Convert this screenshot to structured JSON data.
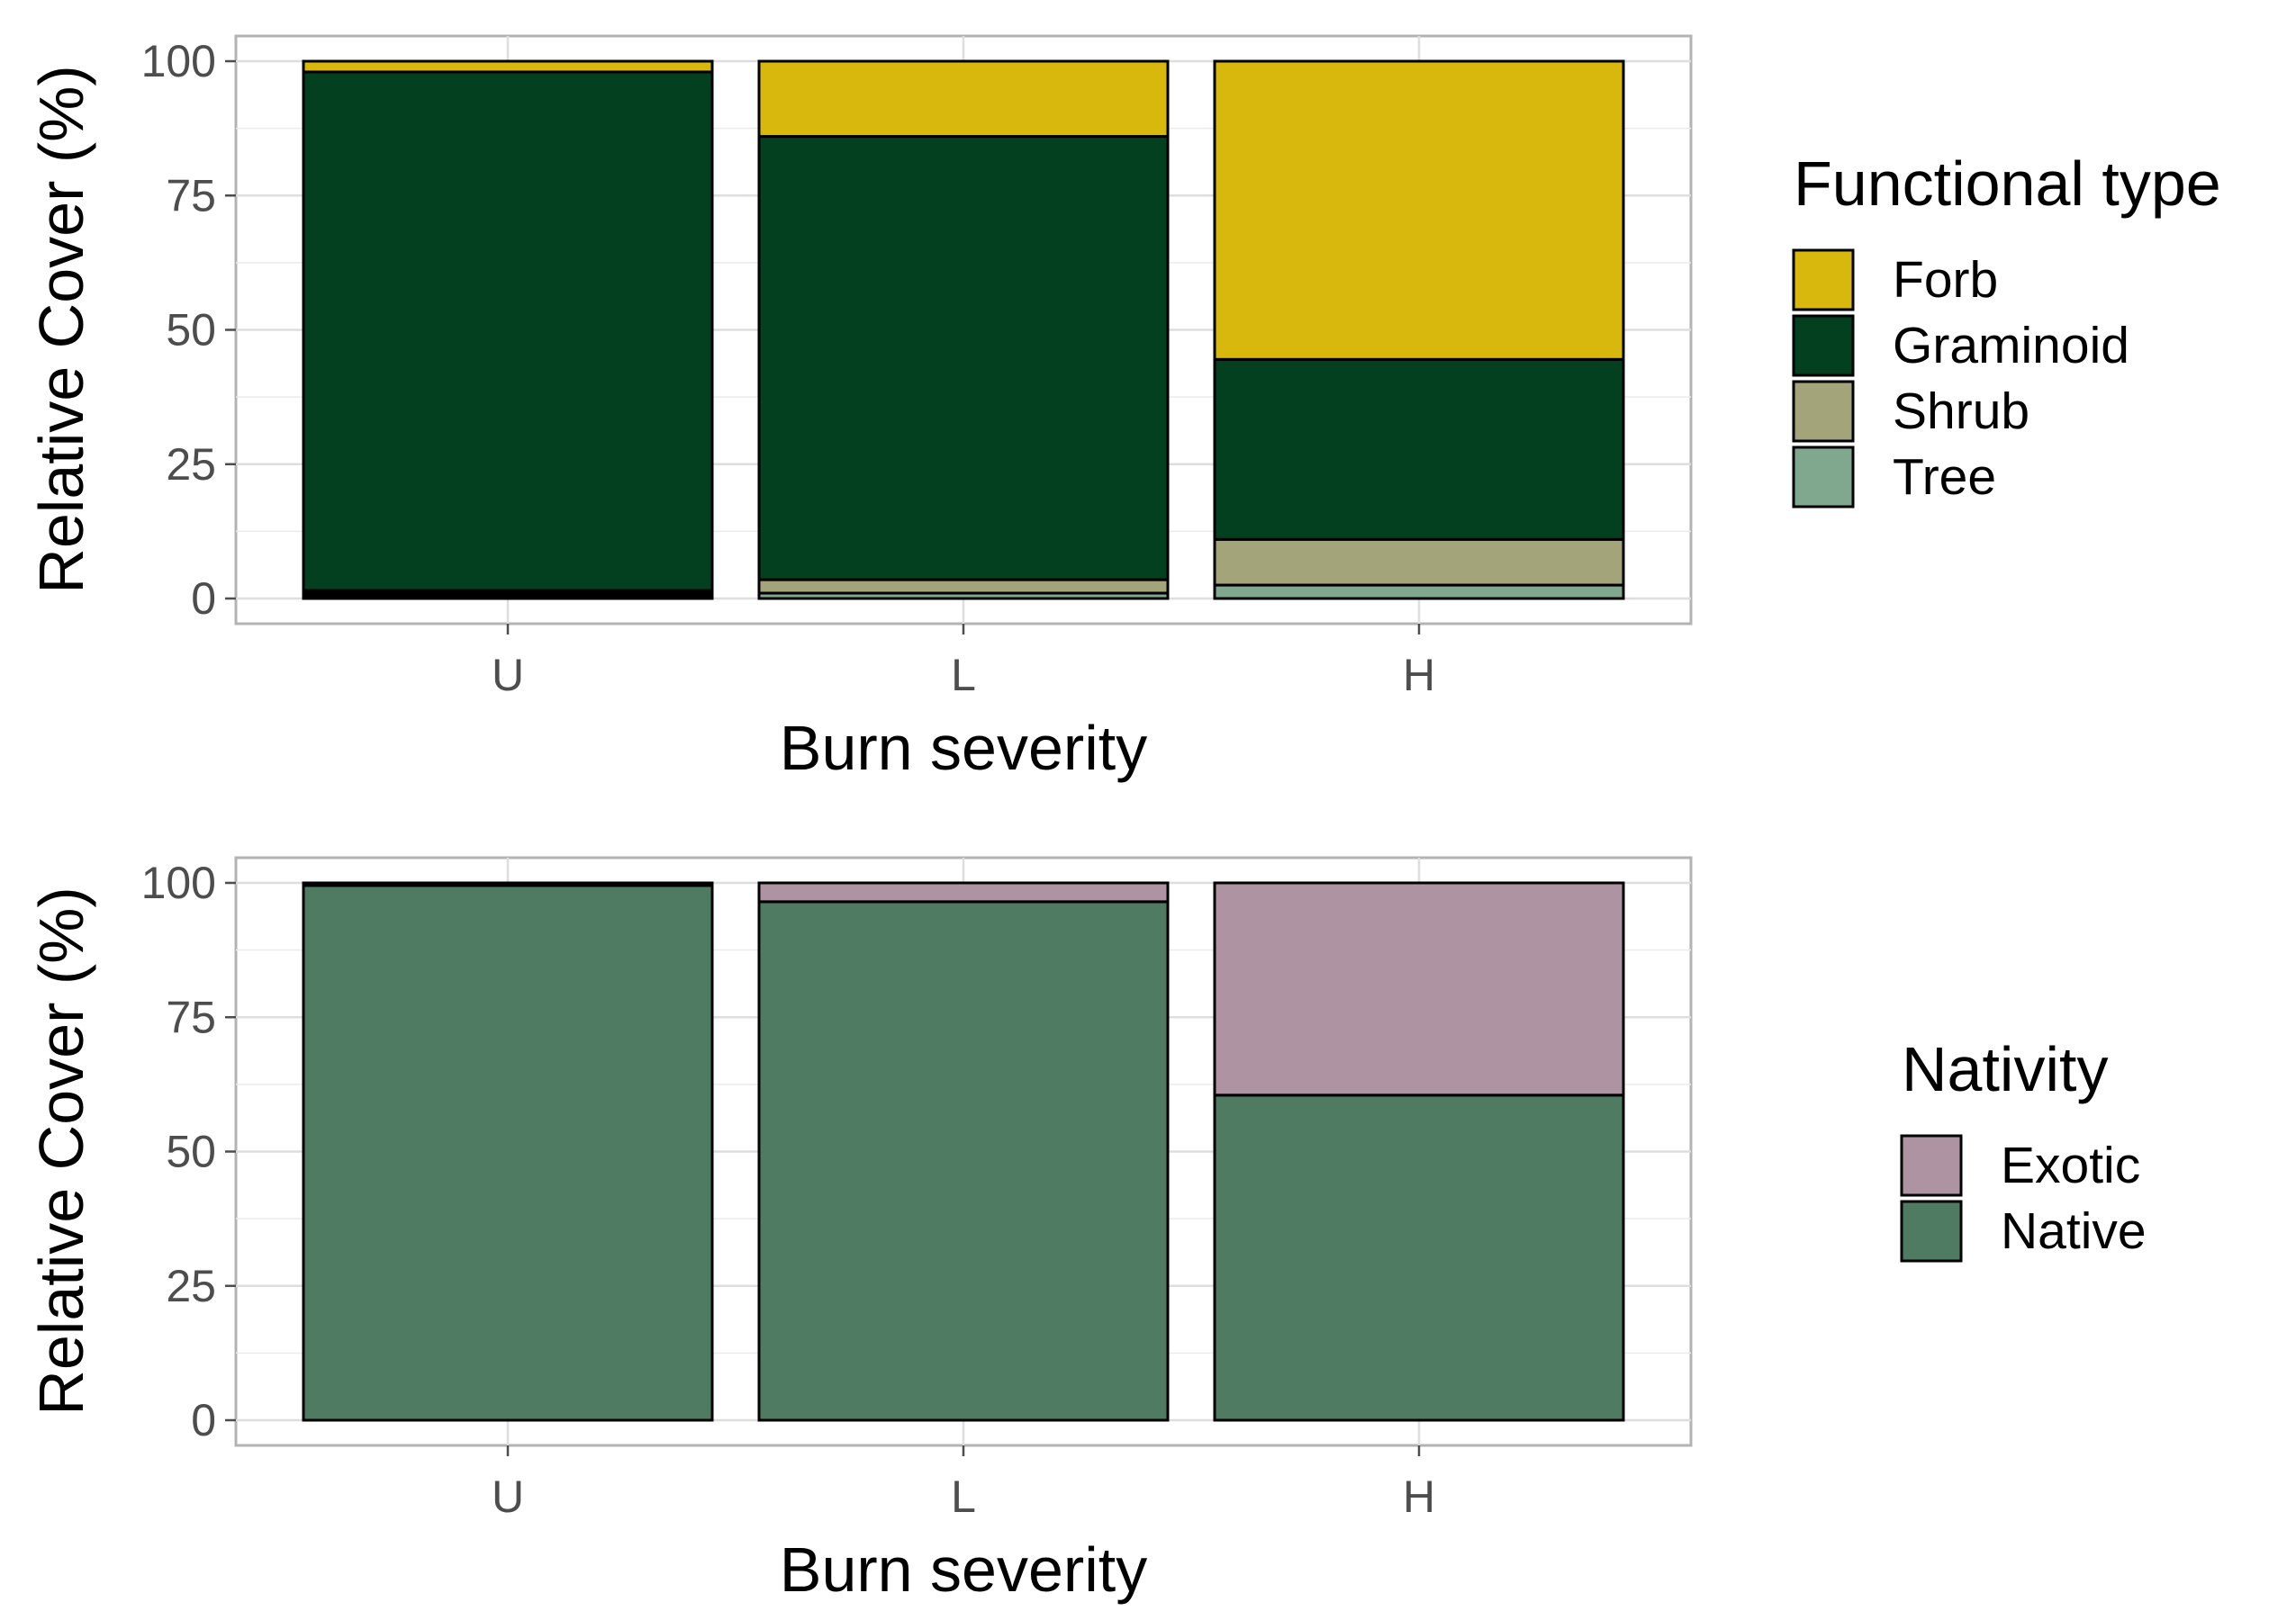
{
  "chart_data": [
    {
      "type": "bar",
      "stacked": true,
      "xlabel": "Burn severity",
      "ylabel": "Relative Cover (%)",
      "ylim": [
        0,
        100
      ],
      "yticks": [
        "0",
        "25",
        "50",
        "75",
        "100"
      ],
      "categories": [
        "U",
        "L",
        "H"
      ],
      "grid": true,
      "legend": {
        "title": "Functional type",
        "placement": "right"
      },
      "series": [
        {
          "name": "",
          "color": "#000000",
          "values": [
            1.5,
            0,
            0
          ]
        },
        {
          "name": "Tree",
          "color": "#7fa88f",
          "values": [
            0,
            1,
            2.5
          ]
        },
        {
          "name": "Shrub",
          "color": "#a3a479",
          "values": [
            0,
            2.5,
            8.5
          ]
        },
        {
          "name": "Graminoid",
          "color": "#03401f",
          "values": [
            96.5,
            82.5,
            33.5
          ]
        },
        {
          "name": "Forb",
          "color": "#d9b80d",
          "values": [
            2,
            14,
            55.5
          ]
        }
      ],
      "legend_order": [
        "Forb",
        "Graminoid",
        "Shrub",
        "Tree"
      ]
    },
    {
      "type": "bar",
      "stacked": true,
      "xlabel": "Burn severity",
      "ylabel": "Relative Cover (%)",
      "ylim": [
        0,
        100
      ],
      "yticks": [
        "0",
        "25",
        "50",
        "75",
        "100"
      ],
      "categories": [
        "U",
        "L",
        "H"
      ],
      "grid": true,
      "legend": {
        "title": "Nativity",
        "placement": "right"
      },
      "series": [
        {
          "name": "Native",
          "color": "#4e7b61",
          "values": [
            99.5,
            96.5,
            60.5
          ]
        },
        {
          "name": "Exotic",
          "color": "#ae94a3",
          "values": [
            0,
            3.5,
            39.5
          ]
        },
        {
          "name": "",
          "color": "#000000",
          "values": [
            0.5,
            0,
            0
          ]
        }
      ],
      "legend_order": [
        "Exotic",
        "Native"
      ]
    }
  ]
}
